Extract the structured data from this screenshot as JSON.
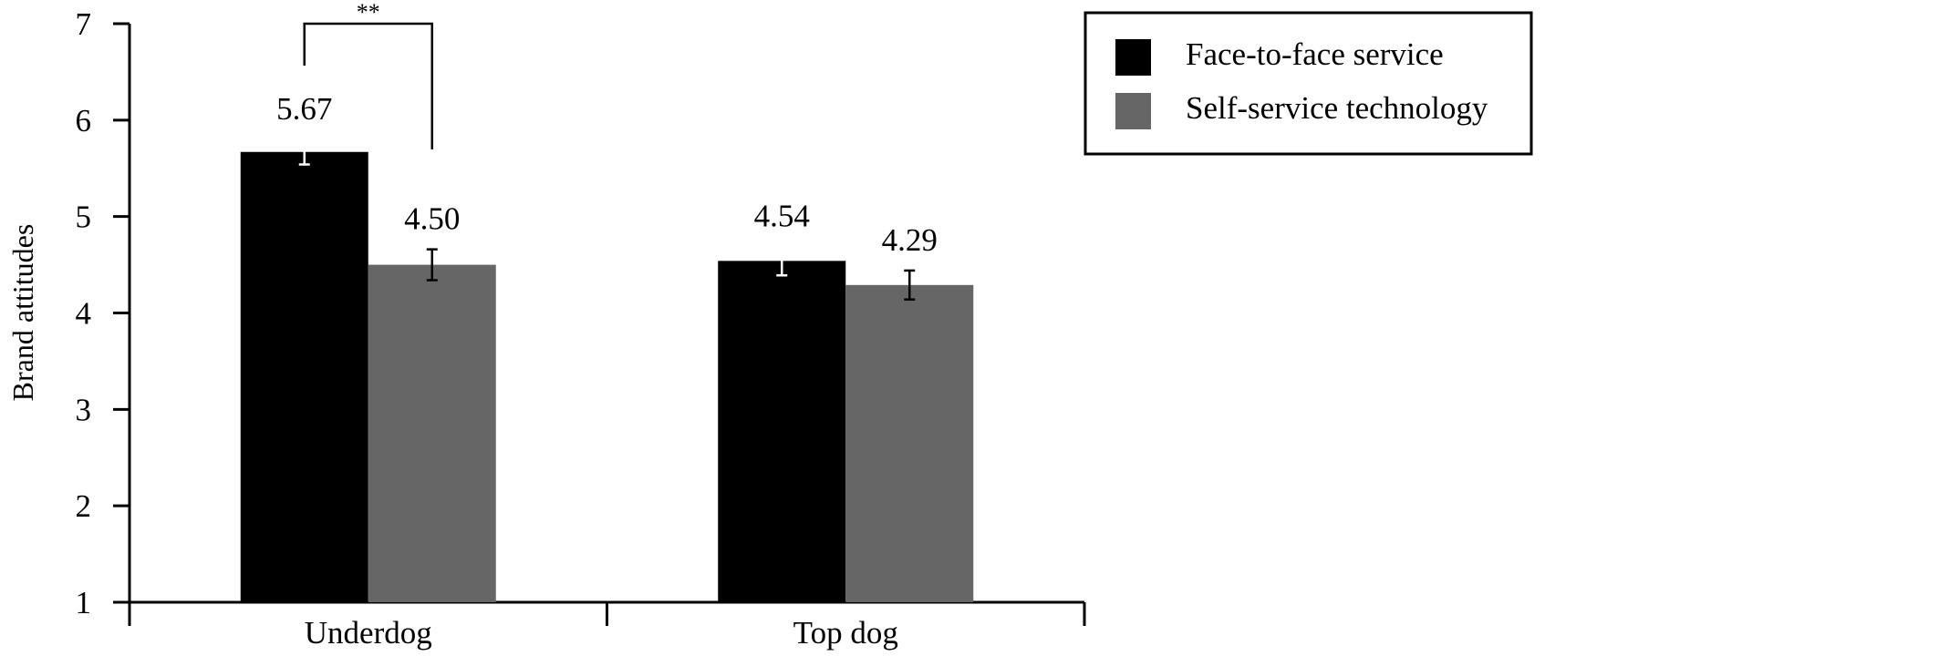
{
  "chart_data": {
    "type": "bar",
    "categories": [
      "Underdog",
      "Top dog"
    ],
    "series": [
      {
        "name": "Face-to-face service",
        "color": "#000000",
        "values": [
          5.67,
          4.54
        ],
        "labels": [
          "5.67",
          "4.54"
        ],
        "error": [
          0.13,
          0.15
        ]
      },
      {
        "name": "Self-service technology",
        "color": "#666666",
        "values": [
          4.5,
          4.29
        ],
        "labels": [
          "4.50",
          "4.29"
        ],
        "error": [
          0.16,
          0.15
        ]
      }
    ],
    "xlabel": "",
    "ylabel": "Brand attitudes",
    "ylim": [
      1,
      7
    ],
    "yticks": [
      "1",
      "2",
      "3",
      "4",
      "5",
      "6",
      "7"
    ],
    "grid": false,
    "legend_position": "top-right",
    "annotations": [
      {
        "text": "**",
        "category": "Underdog",
        "between_series": [
          0,
          1
        ]
      }
    ]
  }
}
